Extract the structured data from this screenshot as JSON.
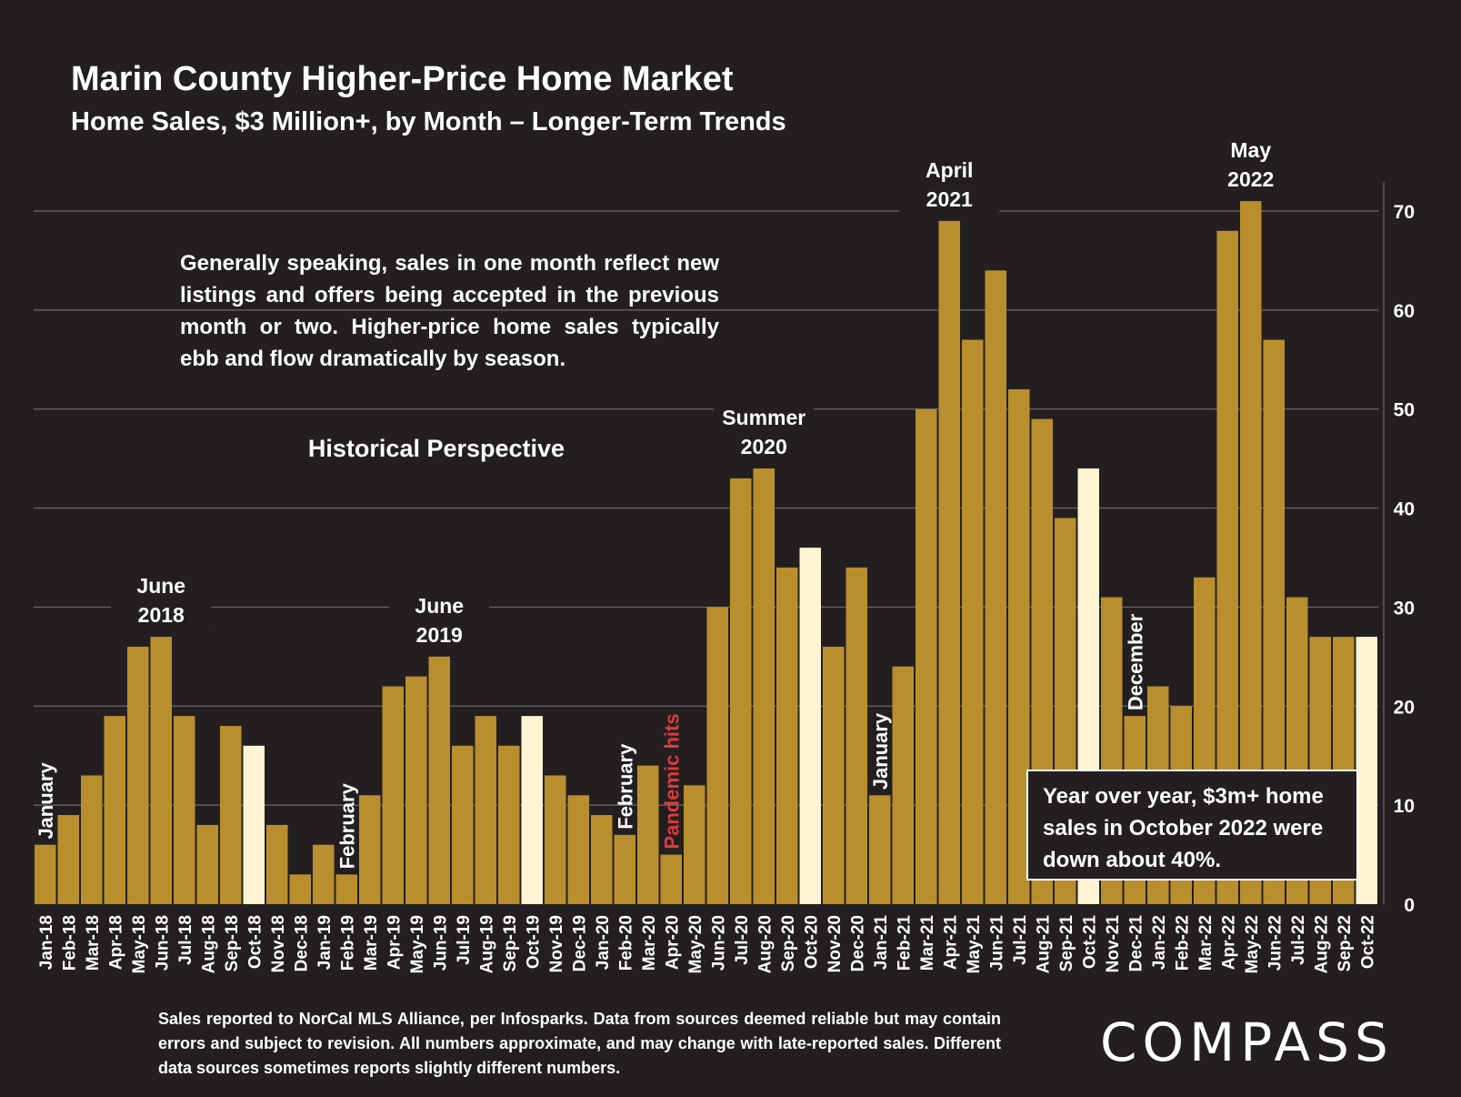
{
  "title": "Marin County Higher-Price Home Market",
  "subtitle": "Home Sales, $3 Million+, by Month – Longer-Term Trends",
  "note": "Generally speaking, sales in one month reflect new listings and offers being accepted in the previous month or two. Higher-price home sales typically ebb and flow dramatically by season.",
  "section_heading": "Historical Perspective",
  "callout": "Year over year, $3m+ home sales in October 2022 were down about 40%.",
  "footer": "Sales reported to NorCal MLS Alliance, per Infosparks. Data from sources deemed reliable but may contain errors and subject to revision. All numbers approximate, and may change with late-reported sales. Different data sources sometimes reports slightly different numbers.",
  "logo": "COMPASS",
  "colors": {
    "background": "#231f20",
    "bar": "#b98f2e",
    "highlight_bar": "#fff5d2",
    "grid": "#6a6a6a",
    "text": "#ffffff",
    "pandemic_label": "#e03a3a"
  },
  "chart_data": {
    "type": "bar",
    "categories": [
      "Jan-18",
      "Feb-18",
      "Mar-18",
      "Apr-18",
      "May-18",
      "Jun-18",
      "Jul-18",
      "Aug-18",
      "Sep-18",
      "Oct-18",
      "Nov-18",
      "Dec-18",
      "Jan-19",
      "Feb-19",
      "Mar-19",
      "Apr-19",
      "May-19",
      "Jun-19",
      "Jul-19",
      "Aug-19",
      "Sep-19",
      "Oct-19",
      "Nov-19",
      "Dec-19",
      "Jan-20",
      "Feb-20",
      "Mar-20",
      "Apr-20",
      "May-20",
      "Jun-20",
      "Jul-20",
      "Aug-20",
      "Sep-20",
      "Oct-20",
      "Nov-20",
      "Dec-20",
      "Jan-21",
      "Feb-21",
      "Mar-21",
      "Apr-21",
      "May-21",
      "Jun-21",
      "Jul-21",
      "Aug-21",
      "Sep-21",
      "Oct-21",
      "Nov-21",
      "Dec-21",
      "Jan-22",
      "Feb-22",
      "Mar-22",
      "Apr-22",
      "May-22",
      "Jun-22",
      "Jul-22",
      "Aug-22",
      "Sep-22",
      "Oct-22"
    ],
    "values": [
      6,
      9,
      13,
      19,
      26,
      27,
      19,
      8,
      18,
      16,
      8,
      3,
      6,
      3,
      11,
      22,
      23,
      25,
      16,
      19,
      16,
      19,
      13,
      11,
      9,
      7,
      14,
      5,
      12,
      30,
      43,
      44,
      34,
      36,
      26,
      34,
      11,
      24,
      50,
      69,
      57,
      64,
      52,
      49,
      39,
      44,
      31,
      19,
      22,
      20,
      33,
      68,
      71,
      57,
      31,
      27,
      27,
      27
    ],
    "highlighted": [
      "Oct-18",
      "Oct-19",
      "Oct-20",
      "Oct-21",
      "Oct-22"
    ],
    "ylim": [
      0,
      70
    ],
    "yticks": [
      0,
      10,
      20,
      30,
      40,
      50,
      60,
      70
    ],
    "y_axis_side": "right",
    "grid": true,
    "annotations": [
      {
        "text": [
          "January"
        ],
        "at": "Jan-18",
        "style": "vertical"
      },
      {
        "text": [
          "June",
          "2018"
        ],
        "at": "Jun-18",
        "style": "horizontal"
      },
      {
        "text": [
          "February"
        ],
        "at": "Feb-19",
        "style": "vertical"
      },
      {
        "text": [
          "June",
          "2019"
        ],
        "at": "Jun-19",
        "style": "horizontal"
      },
      {
        "text": [
          "February"
        ],
        "at": "Feb-20",
        "style": "vertical"
      },
      {
        "text": [
          "Pandemic hits"
        ],
        "at": "Apr-20",
        "style": "vertical",
        "color": "#e03a3a"
      },
      {
        "text": [
          "Summer",
          "2020"
        ],
        "at": "Aug-20",
        "style": "horizontal"
      },
      {
        "text": [
          "January"
        ],
        "at": "Jan-21",
        "style": "vertical"
      },
      {
        "text": [
          "April",
          "2021"
        ],
        "at": "Apr-21",
        "style": "horizontal"
      },
      {
        "text": [
          "December"
        ],
        "at": "Dec-21",
        "style": "vertical"
      },
      {
        "text": [
          "May",
          "2022"
        ],
        "at": "May-22",
        "style": "horizontal"
      }
    ]
  }
}
